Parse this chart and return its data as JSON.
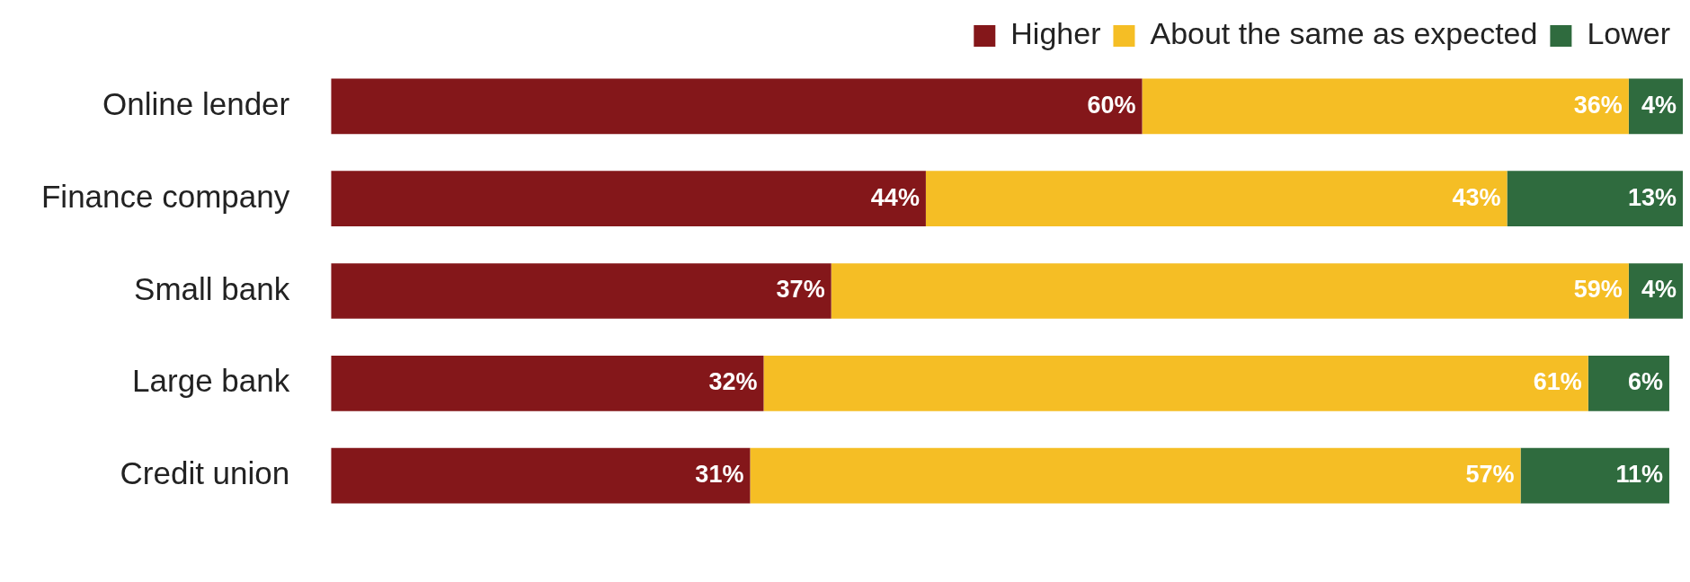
{
  "chart_data": {
    "type": "bar",
    "orientation": "horizontal",
    "stacked": true,
    "legend": "top right",
    "categories": [
      "Online lender",
      "Finance company",
      "Small bank",
      "Large bank",
      "Credit union"
    ],
    "series": [
      {
        "name": "Higher",
        "color": "#84171a",
        "values": [
          60,
          44,
          37,
          32,
          31
        ],
        "value_labels": [
          "60%",
          "44%",
          "37%",
          "32%",
          "31%"
        ]
      },
      {
        "name": "About the same as expected",
        "color": "#f5be25",
        "values": [
          36,
          43,
          59,
          61,
          57
        ],
        "value_labels": [
          "36%",
          "43%",
          "59%",
          "61%",
          "57%"
        ]
      },
      {
        "name": "Lower",
        "color": "#2f6b3e",
        "values": [
          4,
          13,
          4,
          6,
          11
        ],
        "value_labels": [
          "4%",
          "13%",
          "4%",
          "6%",
          "11%"
        ]
      }
    ]
  }
}
